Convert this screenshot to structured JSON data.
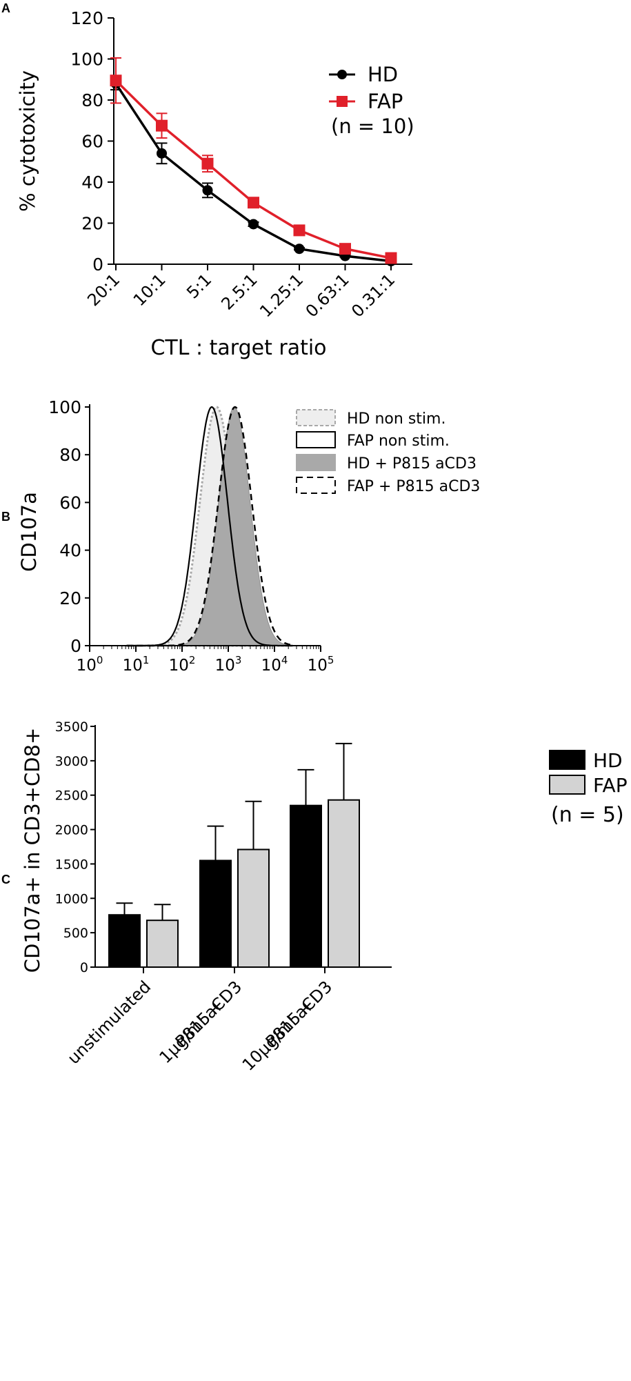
{
  "figure": {
    "panel_labels": [
      "A",
      "B",
      "C"
    ]
  },
  "chart_data": [
    {
      "type": "line",
      "panel": "A",
      "title": "",
      "xlabel": "CTL : target ratio",
      "ylabel": "% cytotoxicity",
      "categories": [
        "20:1",
        "10:1",
        "5:1",
        "2.5:1",
        "1.25:1",
        "0.63:1",
        "0.31:1"
      ],
      "ylim": [
        0,
        120
      ],
      "yticks": [
        "0",
        "20",
        "40",
        "60",
        "80",
        "100",
        "120"
      ],
      "legend_note": "(n = 10)",
      "series": [
        {
          "name": "HD",
          "color": "#000000",
          "marker": "circle",
          "values": [
            88,
            54,
            36,
            19.5,
            7.5,
            4,
            1.5
          ],
          "errors": [
            3,
            5,
            3.5,
            1,
            0.5,
            0.5,
            0.3
          ]
        },
        {
          "name": "FAP",
          "color": "#e0202a",
          "marker": "square",
          "values": [
            89.5,
            67.5,
            49,
            30,
            16.5,
            7.5,
            3
          ],
          "errors": [
            11,
            6,
            4,
            2,
            1,
            0.7,
            0.5
          ]
        }
      ]
    },
    {
      "type": "area",
      "panel": "B",
      "title": "",
      "xlabel": "",
      "ylabel": "CD107a",
      "xscale": "log",
      "xlim": [
        1,
        100000
      ],
      "xticks": [
        {
          "base": "10",
          "exp": "0"
        },
        {
          "base": "10",
          "exp": "1"
        },
        {
          "base": "10",
          "exp": "2"
        },
        {
          "base": "10",
          "exp": "3"
        },
        {
          "base": "10",
          "exp": "4"
        },
        {
          "base": "10",
          "exp": "5"
        }
      ],
      "ylim": [
        0,
        100
      ],
      "yticks": [
        "0",
        "20",
        "40",
        "60",
        "80",
        "100"
      ],
      "series": [
        {
          "name": "HD non stim.",
          "style": "dotted-outline",
          "fill": "#eeeeee",
          "stroke": "#a8a8a8",
          "peak_at": 560,
          "log_sd": 0.36
        },
        {
          "name": "FAP non stim.",
          "style": "solid-outline",
          "fill": "none",
          "stroke": "#000000",
          "peak_at": 440,
          "log_sd": 0.34
        },
        {
          "name": "HD + P815 aCD3",
          "style": "filled",
          "fill": "#a9a9a9",
          "stroke": "#8e8e8e",
          "peak_at": 1350,
          "log_sd": 0.34
        },
        {
          "name": "FAP + P815 aCD3",
          "style": "dashed-outline",
          "fill": "none",
          "stroke": "#000000",
          "peak_at": 1400,
          "log_sd": 0.36
        }
      ]
    },
    {
      "type": "bar",
      "panel": "C",
      "title": "",
      "xlabel": "",
      "ylabel": "CD107a+ in CD3+CD8+",
      "categories": [
        [
          "unstimulated"
        ],
        [
          "P815 +",
          "1μg/ml aCD3"
        ],
        [
          "P815 +",
          "10μg/ml aCD3"
        ]
      ],
      "ylim": [
        0,
        3500
      ],
      "yticks": [
        "0",
        "500",
        "1000",
        "1500",
        "2000",
        "2500",
        "3000",
        "3500"
      ],
      "legend_note": "(n = 5)",
      "series": [
        {
          "name": "HD",
          "color": "#000000",
          "values": [
            760,
            1550,
            2350
          ],
          "errors": [
            170,
            500,
            520
          ]
        },
        {
          "name": "FAP",
          "color": "#d3d3d3",
          "values": [
            680,
            1710,
            2430
          ],
          "errors": [
            230,
            700,
            820
          ]
        }
      ]
    }
  ]
}
